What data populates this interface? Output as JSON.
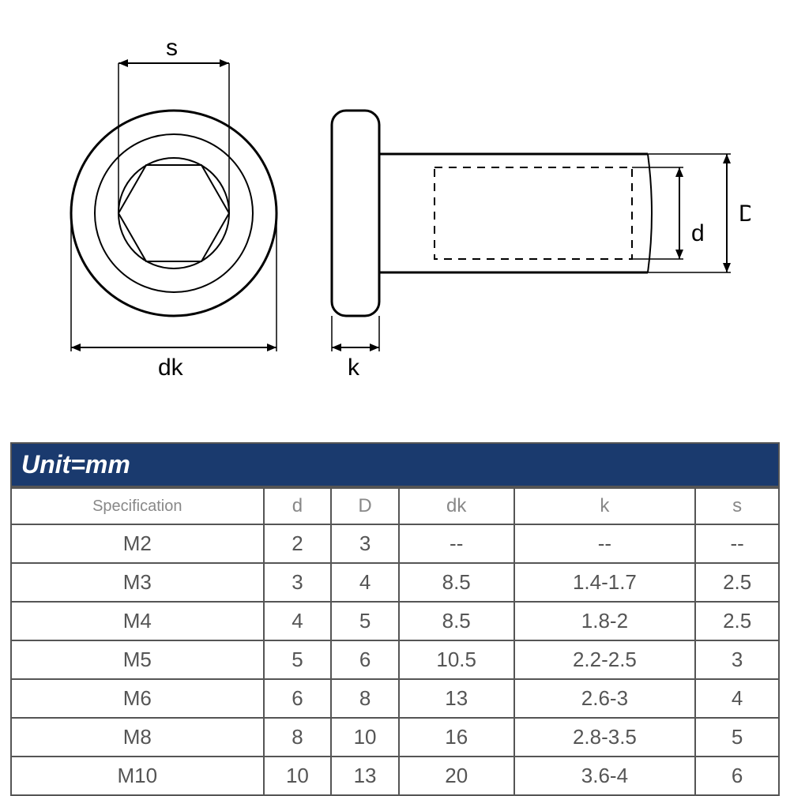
{
  "diagram": {
    "labels": {
      "s": "s",
      "dk": "dk",
      "k": "k",
      "d": "d",
      "D": "D"
    },
    "stroke_color": "#000000",
    "stroke_width": 2,
    "background": "#ffffff"
  },
  "table": {
    "unit_label": "Unit=mm",
    "header_bg": "#1a3a6e",
    "header_text_color": "#ffffff",
    "border_color": "#555555",
    "text_color": "#555555",
    "columns": [
      "Specification",
      "d",
      "D",
      "dk",
      "k",
      "s"
    ],
    "rows": [
      [
        "M2",
        "2",
        "3",
        "--",
        "--",
        "--"
      ],
      [
        "M3",
        "3",
        "4",
        "8.5",
        "1.4-1.7",
        "2.5"
      ],
      [
        "M4",
        "4",
        "5",
        "8.5",
        "1.8-2",
        "2.5"
      ],
      [
        "M5",
        "5",
        "6",
        "10.5",
        "2.2-2.5",
        "3"
      ],
      [
        "M6",
        "6",
        "8",
        "13",
        "2.6-3",
        "4"
      ],
      [
        "M8",
        "8",
        "10",
        "16",
        "2.8-3.5",
        "5"
      ],
      [
        "M10",
        "10",
        "13",
        "20",
        "3.6-4",
        "6"
      ]
    ]
  }
}
